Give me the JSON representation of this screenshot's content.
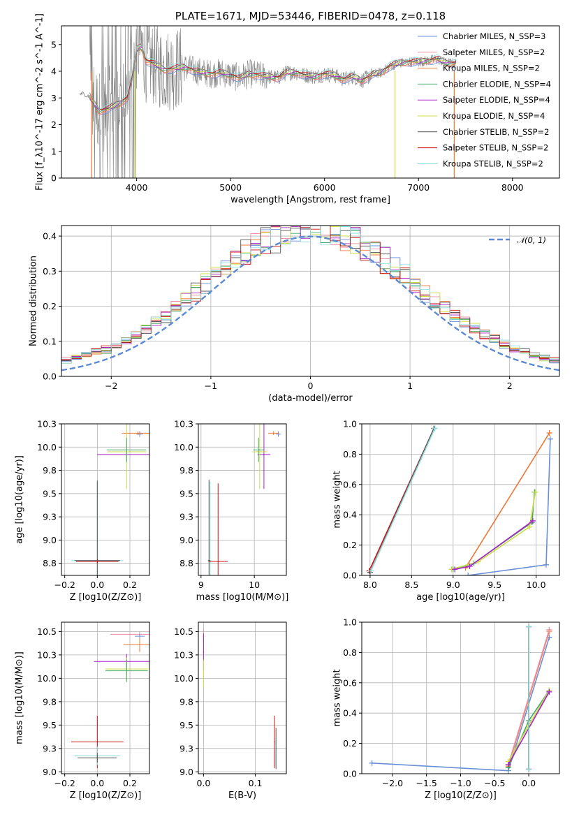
{
  "colors": {
    "chabrier_miles": "#6a8fd8",
    "salpeter_miles": "#f08ca0",
    "kroupa_miles": "#ee7733",
    "chabrier_elodie": "#44aa66",
    "salpeter_elodie": "#aa22cc",
    "kroupa_elodie": "#ccdd44",
    "chabrier_stelib": "#555555",
    "salpeter_stelib": "#cc1111",
    "kroupa_stelib": "#88dddd",
    "data": "#808080",
    "gauss": "#5b8ad4"
  },
  "chart_data": [
    {
      "id": "spectrum",
      "type": "line",
      "title": "PLATE=1671, MJD=53446, FIBERID=0478, z=0.118",
      "xlabel": "wavelength [Angstrom, rest frame]",
      "ylabel": "Flux [f_λ10^-17 erg cm^-2 s^-1 A^-1]",
      "xlim": [
        3200,
        8500
      ],
      "ylim": [
        0,
        5.7
      ],
      "xticks": [
        4000,
        5000,
        6000,
        7000,
        8000
      ],
      "yticks": [
        0,
        1,
        2,
        3,
        4,
        5
      ],
      "grid": false,
      "legend_position": "upper-right",
      "legend": [
        {
          "label": "Chabrier MILES, N_SSP=3",
          "key": "chabrier_miles"
        },
        {
          "label": "Salpeter MILES, N_SSP=2",
          "key": "salpeter_miles"
        },
        {
          "label": "Kroupa MILES, N_SSP=2",
          "key": "kroupa_miles"
        },
        {
          "label": "Chabrier ELODIE, N_SSP=4",
          "key": "chabrier_elodie"
        },
        {
          "label": "Salpeter ELODIE, N_SSP=4",
          "key": "salpeter_elodie"
        },
        {
          "label": "Kroupa ELODIE, N_SSP=4",
          "key": "kroupa_elodie"
        },
        {
          "label": "Chabrier STELIB, N_SSP=2",
          "key": "chabrier_stelib"
        },
        {
          "label": "Salpeter STELIB, N_SSP=2",
          "key": "salpeter_stelib"
        },
        {
          "label": "Kroupa STELIB, N_SSP=2",
          "key": "kroupa_stelib"
        }
      ],
      "model_continuum": {
        "x": [
          3400,
          3500,
          3600,
          3700,
          3800,
          3900,
          3950,
          4000,
          4050,
          4100,
          4200,
          4300,
          4400,
          4500,
          4600,
          4700,
          4800,
          4900,
          5000,
          5100,
          5200,
          5300,
          5400,
          5500,
          5600,
          5700,
          5800,
          5900,
          6000,
          6100,
          6200,
          6300,
          6400,
          6500,
          6600,
          6700,
          6800,
          6900,
          7000,
          7100,
          7200,
          7300,
          7400
        ],
        "y": [
          3.2,
          3.05,
          2.5,
          2.6,
          2.75,
          3.0,
          3.7,
          4.8,
          4.95,
          4.4,
          4.25,
          4.05,
          4.1,
          4.15,
          4.05,
          3.95,
          3.9,
          3.95,
          3.85,
          3.75,
          3.9,
          3.85,
          3.8,
          3.75,
          3.95,
          3.95,
          3.85,
          3.8,
          3.9,
          3.85,
          3.7,
          3.8,
          3.65,
          3.85,
          3.95,
          4.2,
          4.3,
          4.35,
          4.35,
          4.4,
          4.45,
          4.3,
          4.3
        ]
      },
      "observed_flux_range": {
        "x": [
          3500,
          7400
        ],
        "y_min": 0,
        "y_max": 5.7
      }
    },
    {
      "id": "residuals",
      "type": "line",
      "xlabel": "(data-model)/error",
      "ylabel": "Normed distribution",
      "xlim": [
        -2.5,
        2.5
      ],
      "ylim": [
        0,
        0.43
      ],
      "xticks": [
        -2,
        -1,
        0,
        1,
        2
      ],
      "yticks": [
        0.0,
        0.1,
        0.2,
        0.3,
        0.4
      ],
      "grid": true,
      "legend_position": "upper-right",
      "legend": [
        {
          "label": "𝒩(0, 1)",
          "key": "gauss"
        }
      ],
      "histogram_bin_width": 0.1,
      "histogram_range": [
        -2.5,
        2.5
      ]
    },
    {
      "id": "age-vs-z",
      "type": "scatter",
      "xlabel": "Z [log10(Z/Z⊙)]",
      "ylabel": "age  [log10(age/yr)]",
      "xlim": [
        -0.22,
        0.32
      ],
      "ylim": [
        8.62,
        10.25
      ],
      "xticks": [
        -0.2,
        0.0,
        0.2
      ],
      "yticks": [
        8.75,
        9.0,
        9.25,
        9.5,
        9.75,
        10.0,
        10.25
      ],
      "grid": true,
      "points": [
        {
          "key": "chabrier_miles",
          "x": 0.26,
          "y": 10.14,
          "xerr": 0.02,
          "yerr": 0.03
        },
        {
          "key": "kroupa_miles",
          "x": 0.25,
          "y": 10.15,
          "xerr": 0.1,
          "yerr": 0.02
        },
        {
          "key": "salpeter_elodie",
          "x": 0.18,
          "y": 9.92,
          "xerr": 0.18,
          "yerr": 0.01
        },
        {
          "key": "kroupa_elodie",
          "x": 0.18,
          "y": 9.95,
          "xerr": 0.12,
          "yerr": 0.4
        },
        {
          "key": "chabrier_elodie",
          "x": 0.18,
          "y": 9.97,
          "xerr": 0.12,
          "yerr": 0.13
        },
        {
          "key": "kroupa_stelib",
          "x": 0.0,
          "y": 8.78,
          "xerr": 0.16,
          "yerr": 0.85
        },
        {
          "key": "chabrier_stelib",
          "x": 0.0,
          "y": 8.78,
          "xerr": 0.14,
          "yerr": 0.86
        },
        {
          "key": "salpeter_stelib",
          "x": 0.0,
          "y": 8.77,
          "xerr": 0.13,
          "yerr": 0.02
        }
      ]
    },
    {
      "id": "age-vs-mass",
      "type": "scatter",
      "xlabel": "mass [log10(M/M⊙)]",
      "ylabel": "",
      "xlim": [
        8.95,
        10.6
      ],
      "ylim": [
        8.62,
        10.25
      ],
      "xticks": [
        9,
        10
      ],
      "yticks": [
        8.75,
        9.0,
        9.25,
        9.5,
        9.75,
        10.0,
        10.25
      ],
      "grid": true,
      "points": [
        {
          "key": "chabrier_miles",
          "x": 10.45,
          "y": 10.14,
          "xerr": 0.05,
          "yerr": 0.03
        },
        {
          "key": "kroupa_miles",
          "x": 10.36,
          "y": 10.15,
          "xerr": 0.1,
          "yerr": 0.02
        },
        {
          "key": "salpeter_elodie",
          "x": 10.18,
          "y": 9.92,
          "xerr": 0.12,
          "yerr": 0.37
        },
        {
          "key": "kroupa_elodie",
          "x": 10.1,
          "y": 9.95,
          "xerr": 0.14,
          "yerr": 0.4
        },
        {
          "key": "chabrier_elodie",
          "x": 10.08,
          "y": 9.97,
          "xerr": 0.1,
          "yerr": 0.13
        },
        {
          "key": "kroupa_stelib",
          "x": 9.17,
          "y": 8.78,
          "xerr": 0.02,
          "yerr": 0.85
        },
        {
          "key": "chabrier_stelib",
          "x": 9.15,
          "y": 8.78,
          "xerr": 0.02,
          "yerr": 0.87
        },
        {
          "key": "salpeter_stelib",
          "x": 9.32,
          "y": 8.77,
          "xerr": 0.18,
          "yerr": 0.84
        }
      ]
    },
    {
      "id": "weight-vs-age",
      "type": "line",
      "xlabel": "age  [log10(age/yr)]",
      "ylabel": "mass weight",
      "xlim": [
        7.9,
        10.28
      ],
      "ylim": [
        0,
        1.0
      ],
      "xticks": [
        8.0,
        8.5,
        9.0,
        9.5,
        10.0
      ],
      "yticks": [
        0.0,
        0.2,
        0.4,
        0.6,
        0.8,
        1.0
      ],
      "grid": true,
      "series": [
        {
          "key": "salpeter_stelib",
          "x": [
            7.99,
            8.77
          ],
          "y": [
            0.03,
            0.97
          ]
        },
        {
          "key": "chabrier_stelib",
          "x": [
            8.0,
            8.77
          ],
          "y": [
            0.02,
            0.97
          ]
        },
        {
          "key": "kroupa_stelib",
          "x": [
            8.01,
            8.78
          ],
          "y": [
            0.03,
            0.97
          ]
        },
        {
          "key": "chabrier_miles",
          "x": [
            9.18,
            10.12,
            10.17
          ],
          "y": [
            0.0,
            0.07,
            0.9
          ]
        },
        {
          "key": "kroupa_miles",
          "x": [
            9.15,
            10.16
          ],
          "y": [
            0.05,
            0.94
          ]
        },
        {
          "key": "chabrier_elodie",
          "x": [
            9.0,
            9.25,
            9.95,
            9.98
          ],
          "y": [
            0.04,
            0.08,
            0.35,
            0.55
          ]
        },
        {
          "key": "kroupa_elodie",
          "x": [
            8.98,
            9.3,
            9.92,
            9.99
          ],
          "y": [
            0.04,
            0.09,
            0.32,
            0.55
          ]
        },
        {
          "key": "salpeter_elodie",
          "x": [
            9.02,
            9.2,
            9.96
          ],
          "y": [
            0.04,
            0.06,
            0.36
          ]
        }
      ]
    },
    {
      "id": "mass-vs-z",
      "type": "scatter",
      "xlabel": "Z [log10(Z/Z⊙)]",
      "ylabel": "mass [log10(M/M⊙)]",
      "xlim": [
        -0.22,
        0.32
      ],
      "ylim": [
        8.98,
        10.6
      ],
      "xticks": [
        -0.2,
        0.0,
        0.2
      ],
      "yticks": [
        9.0,
        9.25,
        9.5,
        9.75,
        10.0,
        10.25,
        10.5
      ],
      "grid": true,
      "points": [
        {
          "key": "salpeter_miles",
          "x": 0.26,
          "y": 10.47,
          "xerr": 0.18,
          "yerr": 0.03
        },
        {
          "key": "chabrier_miles",
          "x": 0.26,
          "y": 10.45,
          "xerr": 0.03,
          "yerr": 0.04
        },
        {
          "key": "kroupa_miles",
          "x": 0.26,
          "y": 10.36,
          "xerr": 0.1,
          "yerr": 0.08
        },
        {
          "key": "salpeter_elodie",
          "x": 0.18,
          "y": 10.18,
          "xerr": 0.2,
          "yerr": 0.08
        },
        {
          "key": "kroupa_elodie",
          "x": 0.18,
          "y": 10.1,
          "xerr": 0.13,
          "yerr": 0.12
        },
        {
          "key": "chabrier_elodie",
          "x": 0.18,
          "y": 10.08,
          "xerr": 0.13,
          "yerr": 0.12
        },
        {
          "key": "salpeter_stelib",
          "x": 0.0,
          "y": 9.32,
          "xerr": 0.16,
          "yerr": 0.28
        },
        {
          "key": "kroupa_stelib",
          "x": 0.0,
          "y": 9.17,
          "xerr": 0.14,
          "yerr": 0.1
        },
        {
          "key": "chabrier_stelib",
          "x": 0.0,
          "y": 9.15,
          "xerr": 0.12,
          "yerr": 0.05
        }
      ]
    },
    {
      "id": "mass-vs-ebv",
      "type": "scatter",
      "xlabel": "E(B-V)",
      "ylabel": "",
      "xlim": [
        -0.01,
        0.16
      ],
      "ylim": [
        8.98,
        10.6
      ],
      "xticks": [
        0.0,
        0.1
      ],
      "yticks": [
        9.0,
        9.25,
        9.5,
        9.75,
        10.0,
        10.25,
        10.5
      ],
      "grid": true,
      "points": [
        {
          "key": "salpeter_miles",
          "x": 0.0,
          "y": 10.45,
          "xerr": 0,
          "yerr": 0.08
        },
        {
          "key": "salpeter_elodie",
          "x": 0.0,
          "y": 10.28,
          "xerr": 0,
          "yerr": 0.2
        },
        {
          "key": "kroupa_elodie",
          "x": 0.0,
          "y": 10.05,
          "xerr": 0,
          "yerr": 0.15
        },
        {
          "key": "salpeter_stelib",
          "x": 0.137,
          "y": 9.32,
          "xerr": 0,
          "yerr": 0.28
        },
        {
          "key": "chabrier_stelib",
          "x": 0.14,
          "y": 9.25,
          "xerr": 0,
          "yerr": 0.22
        },
        {
          "key": "kroupa_stelib",
          "x": 0.139,
          "y": 9.2,
          "xerr": 0,
          "yerr": 0.15
        }
      ]
    },
    {
      "id": "weight-vs-z",
      "type": "line",
      "xlabel": "Z [log10(Z/Z⊙)]",
      "ylabel": "mass weight",
      "xlim": [
        -2.45,
        0.45
      ],
      "ylim": [
        0,
        1.0
      ],
      "xticks": [
        -2.0,
        -1.5,
        -1.0,
        -0.5,
        0.0
      ],
      "yticks": [
        0.0,
        0.2,
        0.4,
        0.6,
        0.8,
        1.0
      ],
      "grid": true,
      "series": [
        {
          "key": "chabrier_miles",
          "x": [
            -2.3,
            -0.3,
            0.3
          ],
          "y": [
            0.07,
            0.02,
            0.9
          ]
        },
        {
          "key": "kroupa_miles",
          "x": [
            -0.3,
            0.3
          ],
          "y": [
            0.05,
            0.94
          ]
        },
        {
          "key": "salpeter_miles",
          "x": [
            -0.3,
            0.3
          ],
          "y": [
            0.06,
            0.95
          ]
        },
        {
          "key": "chabrier_elodie",
          "x": [
            -0.3,
            0.0,
            0.3
          ],
          "y": [
            0.04,
            0.35,
            0.55
          ]
        },
        {
          "key": "kroupa_elodie",
          "x": [
            -0.3,
            0.0,
            0.3
          ],
          "y": [
            0.08,
            0.32,
            0.55
          ]
        },
        {
          "key": "salpeter_elodie",
          "x": [
            -0.3,
            0.3
          ],
          "y": [
            0.06,
            0.54
          ]
        },
        {
          "key": "chabrier_stelib",
          "x": [
            0.0,
            0.0
          ],
          "y": [
            0.03,
            0.97
          ]
        },
        {
          "key": "salpeter_stelib",
          "x": [
            0.0,
            0.0
          ],
          "y": [
            0.03,
            0.97
          ]
        },
        {
          "key": "kroupa_stelib",
          "x": [
            0.0,
            0.0
          ],
          "y": [
            0.03,
            0.97
          ]
        }
      ]
    }
  ]
}
